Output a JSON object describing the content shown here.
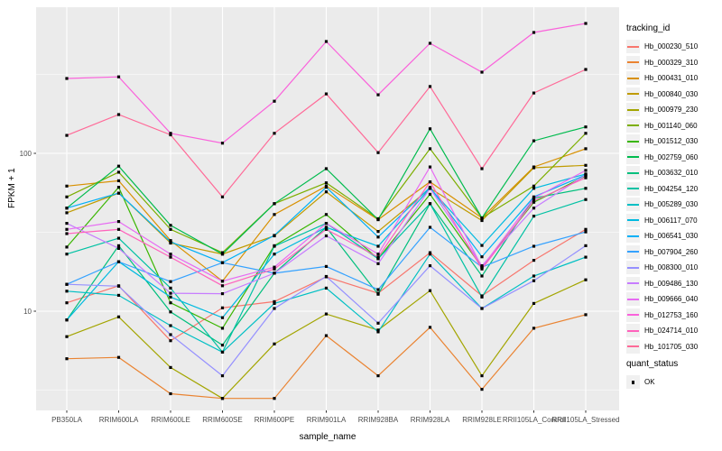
{
  "figure": {
    "panel_bg": "#ebebeb",
    "grid_color": "#ffffff",
    "tick_color": "#333333",
    "tick_text_color": "#4d4d4d",
    "text_color": "#000000",
    "point_color": "#000000"
  },
  "chart_data": {
    "type": "line",
    "xlabel": "sample_name",
    "ylabel": "FPKM + 1",
    "y_scale": "log10",
    "ylim": [
      2.3,
      850
    ],
    "y_ticks": [
      10,
      100
    ],
    "y_minor_ticks": [
      3.162,
      31.62,
      316.2
    ],
    "grid": true,
    "legend_position": "right",
    "categories": [
      "PB350LA",
      "RRIM600LA",
      "RRIM600LE",
      "RRIM600SE",
      "RRIM600PE",
      "RRIM901LA",
      "RRIM928BA",
      "RRIM928LA",
      "RRIM928LE",
      "RRII105LA_Control",
      "RRII105LA_Stressed"
    ],
    "legend": {
      "title": "tracking_id"
    },
    "legend2": {
      "title": "quant_status",
      "items": [
        {
          "label": "OK",
          "marker": "black-square"
        }
      ]
    },
    "series": [
      {
        "name": "Hb_000230_510",
        "color": "#F8766D",
        "values": [
          11.3,
          14.5,
          6.5,
          10.5,
          11.5,
          16.5,
          13.0,
          23.5,
          12.5,
          21.0,
          33.0
        ]
      },
      {
        "name": "Hb_000329_310",
        "color": "#EA8331",
        "values": [
          5.0,
          5.1,
          3.0,
          2.8,
          2.8,
          7.0,
          3.9,
          7.9,
          3.2,
          7.8,
          9.5
        ]
      },
      {
        "name": "Hb_000431_010",
        "color": "#D89000",
        "values": [
          62,
          67,
          28,
          15.5,
          41,
          62,
          38,
          66,
          39,
          82,
          107
        ]
      },
      {
        "name": "Hb_000840_030",
        "color": "#C09B00",
        "values": [
          42,
          56,
          27,
          23,
          30,
          57,
          32,
          60,
          37.5,
          81,
          84
        ]
      },
      {
        "name": "Hb_000979_230",
        "color": "#A3A500",
        "values": [
          6.9,
          9.2,
          4.4,
          2.8,
          6.2,
          9.6,
          7.6,
          13.5,
          3.9,
          11.2,
          15.8
        ]
      },
      {
        "name": "Hb_001140_060",
        "color": "#7CAE00",
        "values": [
          53,
          76,
          33,
          23.5,
          48,
          65,
          38.5,
          107,
          39,
          62,
          134
        ]
      },
      {
        "name": "Hb_001512_030",
        "color": "#39B600",
        "values": [
          25.5,
          61,
          11.3,
          7.8,
          26,
          41,
          21.5,
          55,
          19,
          49,
          72
        ]
      },
      {
        "name": "Hb_002759_060",
        "color": "#00BB4E",
        "values": [
          45,
          83,
          35,
          23,
          48,
          80,
          38,
          143,
          39,
          120,
          147
        ]
      },
      {
        "name": "Hb_003632_010",
        "color": "#00BF7D",
        "values": [
          8.8,
          26,
          9.9,
          6.1,
          17.4,
          34,
          12.8,
          48,
          16.7,
          52,
          60
        ]
      },
      {
        "name": "Hb_004254_120",
        "color": "#00C1A3",
        "values": [
          23,
          29,
          14,
          5.5,
          25.8,
          36,
          21.5,
          48,
          12.3,
          40,
          51
        ]
      },
      {
        "name": "Hb_005289_030",
        "color": "#00BFC4",
        "values": [
          13.4,
          12.6,
          8.1,
          5.5,
          11.2,
          14,
          7.4,
          23,
          10.4,
          16.7,
          22
        ]
      },
      {
        "name": "Hb_006117_070",
        "color": "#00BAE0",
        "values": [
          8.8,
          20.6,
          12.3,
          9.1,
          23,
          34,
          25.8,
          60,
          26.1,
          60,
          74
        ]
      },
      {
        "name": "Hb_006541_030",
        "color": "#00B0F6",
        "values": [
          45,
          56,
          27.5,
          20.3,
          30.2,
          61,
          29.5,
          61,
          22.1,
          53,
          73
        ]
      },
      {
        "name": "Hb_007904_260",
        "color": "#35A2FF",
        "values": [
          14.8,
          20.6,
          15.4,
          20.3,
          17.4,
          19.2,
          13.7,
          34,
          19,
          25.8,
          31.8
        ]
      },
      {
        "name": "Hb_008300_010",
        "color": "#9590FF",
        "values": [
          14.8,
          14.4,
          7.1,
          3.9,
          10.4,
          16.6,
          8.4,
          19.4,
          10.4,
          15.6,
          26
        ]
      },
      {
        "name": "Hb_009486_130",
        "color": "#C77CFF",
        "values": [
          36,
          25,
          13,
          12.9,
          17.4,
          30,
          20,
          60,
          19.4,
          45,
          73
        ]
      },
      {
        "name": "Hb_009666_040",
        "color": "#E76BF3",
        "values": [
          33,
          37,
          23,
          15.5,
          19,
          36,
          23,
          82,
          19,
          52,
          78
        ]
      },
      {
        "name": "Hb_012753_160",
        "color": "#FA62DB",
        "values": [
          298,
          305,
          134,
          116,
          214,
          511,
          235,
          498,
          327,
          583,
          665
        ]
      },
      {
        "name": "Hb_024714_010",
        "color": "#FF62BC",
        "values": [
          31,
          33,
          22,
          14.5,
          18.5,
          33,
          22,
          66,
          18.5,
          50,
          70
        ]
      },
      {
        "name": "Hb_101705_030",
        "color": "#FF6A98",
        "values": [
          130,
          176,
          131,
          53,
          134,
          238,
          101,
          265,
          80,
          241,
          340
        ]
      }
    ]
  }
}
